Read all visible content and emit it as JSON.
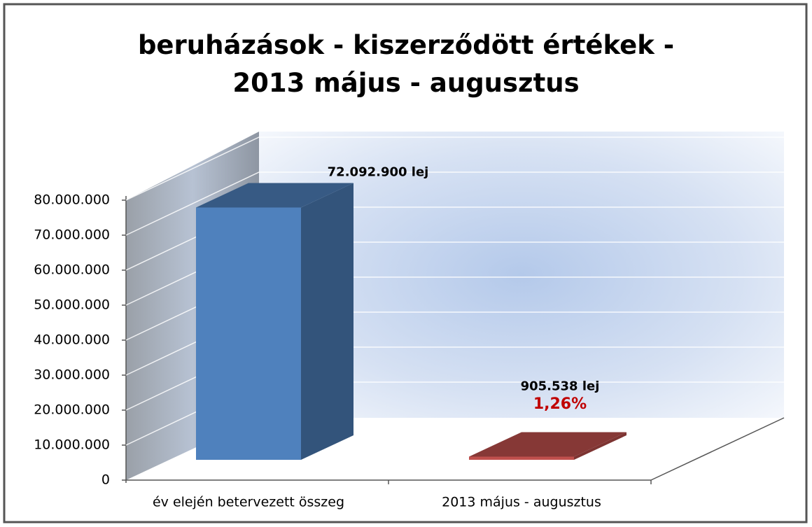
{
  "chart_data": {
    "type": "bar3d",
    "title": "beruházások - kiszerződött értékek - 2013 május - augusztus",
    "categories": [
      "év elején betervezett összeg",
      "2013 május - augusztus"
    ],
    "series": [
      {
        "name": null,
        "colors": [
          "#4f81bd",
          "#c0504d"
        ],
        "values": [
          72092900,
          905538
        ],
        "value_labels": [
          "72.092.900 lej",
          "905.538 lej"
        ]
      }
    ],
    "annotations": [
      {
        "text": "1,26%",
        "category": 1,
        "color": "#c00000"
      }
    ],
    "ylim": [
      0,
      80000000
    ],
    "yticks": [
      {
        "value": 0,
        "label": "0"
      },
      {
        "value": 10000000,
        "label": "10.000.000"
      },
      {
        "value": 20000000,
        "label": "20.000.000"
      },
      {
        "value": 30000000,
        "label": "30.000.000"
      },
      {
        "value": 40000000,
        "label": "40.000.000"
      },
      {
        "value": 50000000,
        "label": "50.000.000"
      },
      {
        "value": 60000000,
        "label": "60.000.000"
      },
      {
        "value": 70000000,
        "label": "70.000.000"
      },
      {
        "value": 80000000,
        "label": "80.000.000"
      }
    ],
    "grid": true
  }
}
